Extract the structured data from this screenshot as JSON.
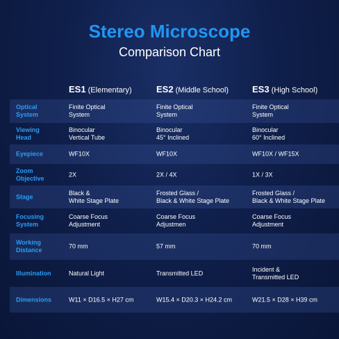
{
  "header": {
    "title": "Stereo Microscope",
    "subtitle": "Comparison Chart"
  },
  "table": {
    "columns": [
      {
        "code": "ES1",
        "level": "(Elementary)"
      },
      {
        "code": "ES2",
        "level": "(Middle School)"
      },
      {
        "code": "ES3",
        "level": "(High School)"
      }
    ],
    "rows": [
      {
        "label": "Optical\nSystem",
        "cells": [
          "Finite Optical\nSystem",
          "Finite Optical\nSystem",
          "Finite Optical\nSystem"
        ]
      },
      {
        "label": "Viewing\nHead",
        "cells": [
          "Binocular\nVertical Tube",
          "Binocular\n45° Inclined",
          "Binocular\n60° Inclined"
        ]
      },
      {
        "label": "Eyepiece",
        "cells": [
          "WF10X",
          "WF10X",
          "WF10X / WF15X"
        ]
      },
      {
        "label": "Zoom\nObjective",
        "cells": [
          "2X",
          "2X / 4X",
          "1X / 3X"
        ]
      },
      {
        "label": "Stage",
        "cells": [
          "Black &\nWhite Stage Plate",
          "Frosted Glass /\nBlack & White Stage Plate",
          "Frosted Glass /\nBlack & White Stage Plate"
        ]
      },
      {
        "label": "Focusing\nSystem",
        "cells": [
          "Coarse Focus\nAdjustment",
          "Coarse Focus\nAdjustmen",
          "Coarse Focus\nAdjustment"
        ]
      },
      {
        "label": "Working\nDistance",
        "cells": [
          "70 mm",
          "57 mm",
          "70 mm"
        ]
      },
      {
        "label": "Illumination",
        "cells": [
          "Natural Light",
          "Transmitted LED",
          "Incident &\nTransmitted LED"
        ]
      },
      {
        "label": "Dimensions",
        "cells": [
          "W11 × D16.5 × H27 cm",
          "W15.4 × D20.3 × H24.2 cm",
          "W21.5 × D28 × H39 cm"
        ]
      }
    ]
  }
}
